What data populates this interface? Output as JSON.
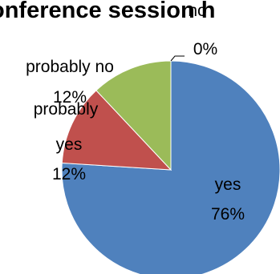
{
  "chart_data": {
    "type": "pie",
    "title": "onference session h",
    "slices": [
      {
        "label": "yes",
        "value": 76,
        "value_label": "76%",
        "color": "#4F81BD"
      },
      {
        "label": "probably yes",
        "value": 12,
        "value_label": "12%",
        "color": "#C0504D"
      },
      {
        "label": "probably no",
        "value": 12,
        "value_label": "12%",
        "color": "#9BBB59"
      },
      {
        "label": "no",
        "value": 0,
        "value_label": "0%",
        "color": "#8064A2"
      }
    ],
    "start_angle_deg": 0,
    "direction": "clockwise",
    "legend": "none"
  }
}
